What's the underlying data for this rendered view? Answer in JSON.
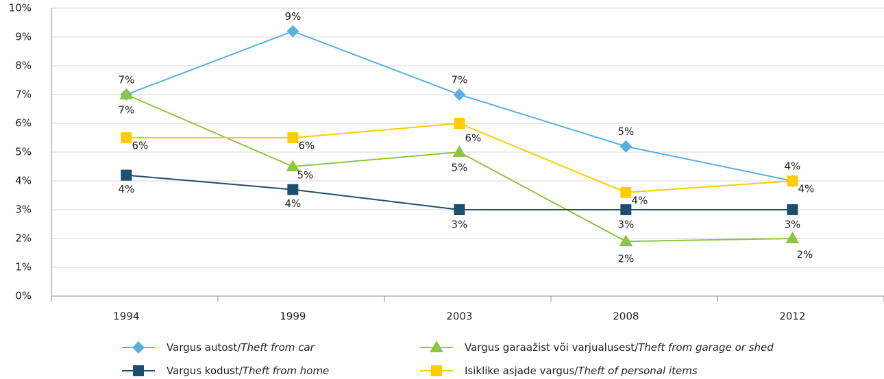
{
  "chart_data": {
    "type": "line",
    "categories": [
      "1994",
      "1999",
      "2003",
      "2008",
      "2012"
    ],
    "ylim": [
      0,
      10
    ],
    "yticks": [
      {
        "value": 0,
        "label": "0%"
      },
      {
        "value": 1,
        "label": "1%"
      },
      {
        "value": 2,
        "label": "2%"
      },
      {
        "value": 3,
        "label": "3%"
      },
      {
        "value": 4,
        "label": "4%"
      },
      {
        "value": 5,
        "label": "5%"
      },
      {
        "value": 6,
        "label": "6%"
      },
      {
        "value": 7,
        "label": "7%"
      },
      {
        "value": 8,
        "label": "8%"
      },
      {
        "value": 9,
        "label": "9%"
      },
      {
        "value": 10,
        "label": "10%"
      }
    ],
    "grid": true,
    "legend": "bottom",
    "series": [
      {
        "name": "Vargus autost/Theft from car",
        "color": "#5aafe0",
        "marker": "diamond",
        "values": [
          7,
          9.2,
          7,
          5.2,
          4
        ],
        "value_labels": [
          "7%",
          "9%",
          "7%",
          "5%",
          "4%"
        ]
      },
      {
        "name": "Vargus garaažist või varjualusest/Theft from garage or shed",
        "color": "#8dc63f",
        "marker": "triangle",
        "values": [
          7,
          4.5,
          5,
          1.9,
          2
        ],
        "value_labels": [
          "7%",
          "5%",
          "5%",
          "2%",
          "2%"
        ]
      },
      {
        "name": "Vargus kodust/Theft from home",
        "color": "#1d4e6e",
        "marker": "square",
        "values": [
          4.2,
          3.7,
          3,
          3,
          3
        ],
        "value_labels": [
          "4%",
          "4%",
          "3%",
          "3%",
          "3%"
        ]
      },
      {
        "name": "Isiklike asjade vargus/Theft of personal items",
        "color": "#ffcc00",
        "marker": "square",
        "values": [
          5.5,
          5.5,
          6,
          3.6,
          4
        ],
        "value_labels": [
          "6%",
          "6%",
          "6%",
          "4%",
          "4%"
        ]
      }
    ]
  }
}
